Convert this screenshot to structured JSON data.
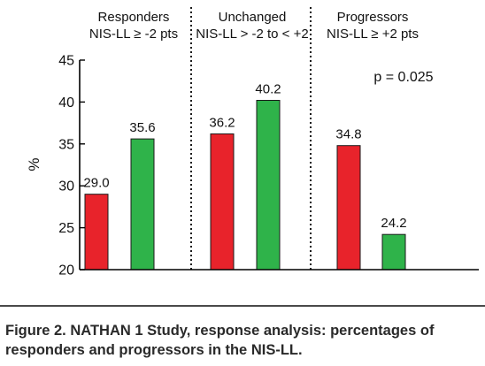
{
  "chart_data": {
    "type": "bar",
    "ylabel": "%",
    "ylim": [
      20,
      45
    ],
    "yticks": [
      "20",
      "25",
      "30",
      "35",
      "40",
      "45"
    ],
    "groups": [
      {
        "title": "Responders",
        "subtitle": "NIS-LL ≥ -2 pts"
      },
      {
        "title": "Unchanged",
        "subtitle": "NIS-LL > -2 to < +2"
      },
      {
        "title": "Progressors",
        "subtitle": "NIS-LL ≥ +2 pts"
      }
    ],
    "series": [
      {
        "color": "#e8232b",
        "values": [
          29.0,
          36.2,
          34.8
        ],
        "labels": [
          "29.0",
          "36.2",
          "34.8"
        ]
      },
      {
        "color": "#2fb34a",
        "values": [
          35.6,
          40.2,
          24.2
        ],
        "labels": [
          "35.6",
          "40.2",
          "24.2"
        ]
      }
    ],
    "annotation": "p = 0.025"
  },
  "caption": {
    "label": "Figure 2.",
    "text": "NATHAN 1 Study, response analysis: percentages of responders and progressors in the NIS-LL."
  }
}
